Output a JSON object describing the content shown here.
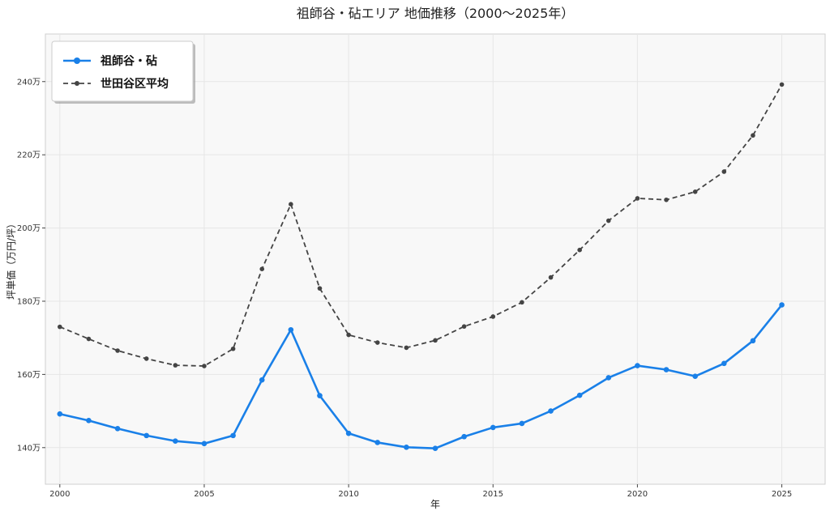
{
  "chart_data": {
    "type": "line",
    "title": "祖師谷・砧エリア 地価推移（2000〜2025年）",
    "xlabel": "年",
    "ylabel": "坪単価（万円/坪）",
    "x": [
      2000,
      2001,
      2002,
      2003,
      2004,
      2005,
      2006,
      2007,
      2008,
      2009,
      2010,
      2011,
      2012,
      2013,
      2014,
      2015,
      2016,
      2017,
      2018,
      2019,
      2020,
      2021,
      2022,
      2023,
      2024,
      2025
    ],
    "xticks": [
      2000,
      2005,
      2010,
      2015,
      2020,
      2025
    ],
    "xtick_labels": [
      "2000",
      "2005",
      "2010",
      "2015",
      "2020",
      "2025"
    ],
    "xlim": [
      1999.5,
      2026.5
    ],
    "yticks": [
      1400000,
      1600000,
      1800000,
      2000000,
      2200000,
      2400000
    ],
    "ytick_labels": [
      "140万",
      "160万",
      "180万",
      "200万",
      "220万",
      "240万"
    ],
    "ylim": [
      1300000,
      2530000
    ],
    "grid": true,
    "legend_position": "top-left",
    "series": [
      {
        "name": "祖師谷・砧",
        "color": "#1a80e8",
        "line_style": "solid",
        "values": [
          1492000,
          1474000,
          1452000,
          1433000,
          1418000,
          1411000,
          1433000,
          1585000,
          1722000,
          1542000,
          1439000,
          1414000,
          1401000,
          1398000,
          1430000,
          1455000,
          1466000,
          1500000,
          1543000,
          1591000,
          1624000,
          1613000,
          1595000,
          1630000,
          1692000,
          1790000
        ]
      },
      {
        "name": "世田谷区平均",
        "color": "#444444",
        "line_style": "dashed",
        "values": [
          1730000,
          1697000,
          1665000,
          1643000,
          1625000,
          1623000,
          1670000,
          1888000,
          2065000,
          1835000,
          1708000,
          1687000,
          1673000,
          1693000,
          1731000,
          1758000,
          1797000,
          1865000,
          1940000,
          2020000,
          2081000,
          2077000,
          2099000,
          2154000,
          2253000,
          2392000
        ]
      }
    ]
  }
}
